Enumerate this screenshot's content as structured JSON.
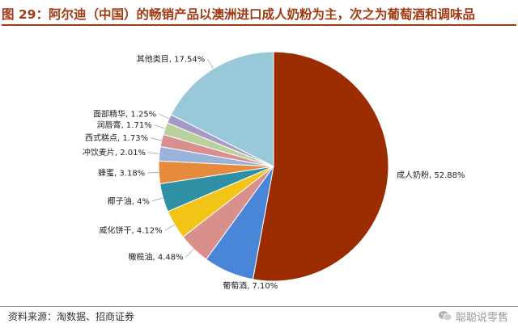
{
  "figure": {
    "title": "图 29：阿尔迪（中国）的畅销产品以澳洲进口成人奶粉为主，次之为葡萄酒和调味品",
    "source": "资料来源：淘数据、招商证券"
  },
  "watermark": {
    "text": "聪聪说零售",
    "icon": "wechat-icon"
  },
  "colors": {
    "title": "#a03a14"
  },
  "chart_data": {
    "type": "pie",
    "title": "",
    "label_format": "name, value%",
    "slices": [
      {
        "name": "成人奶粉",
        "value": 52.88,
        "label": "52.88%",
        "color": "#9b2c00"
      },
      {
        "name": "葡萄酒",
        "value": 7.1,
        "label": "7.10%",
        "color": "#4a86d8"
      },
      {
        "name": "橄榄油",
        "value": 4.48,
        "label": "4.48%",
        "color": "#d9908b"
      },
      {
        "name": "威化饼干",
        "value": 4.12,
        "label": "4.12%",
        "color": "#f2c418"
      },
      {
        "name": "椰子油",
        "value": 4,
        "label": "4%",
        "color": "#2e8fa5"
      },
      {
        "name": "蜂蜜",
        "value": 3.18,
        "label": "3.18%",
        "color": "#e68a3c"
      },
      {
        "name": "冲饮麦片",
        "value": 2.01,
        "label": "2.01%",
        "color": "#99b3d9"
      },
      {
        "name": "西式糕点",
        "value": 1.73,
        "label": "1.73%",
        "color": "#d98f8f"
      },
      {
        "name": "润唇膏",
        "value": 1.71,
        "label": "1.71%",
        "color": "#b9d19c"
      },
      {
        "name": "面部精华",
        "value": 1.25,
        "label": "1.25%",
        "color": "#a699c7"
      },
      {
        "name": "其他类目",
        "value": 17.54,
        "label": "17.54%",
        "color": "#99c9d9"
      }
    ]
  }
}
